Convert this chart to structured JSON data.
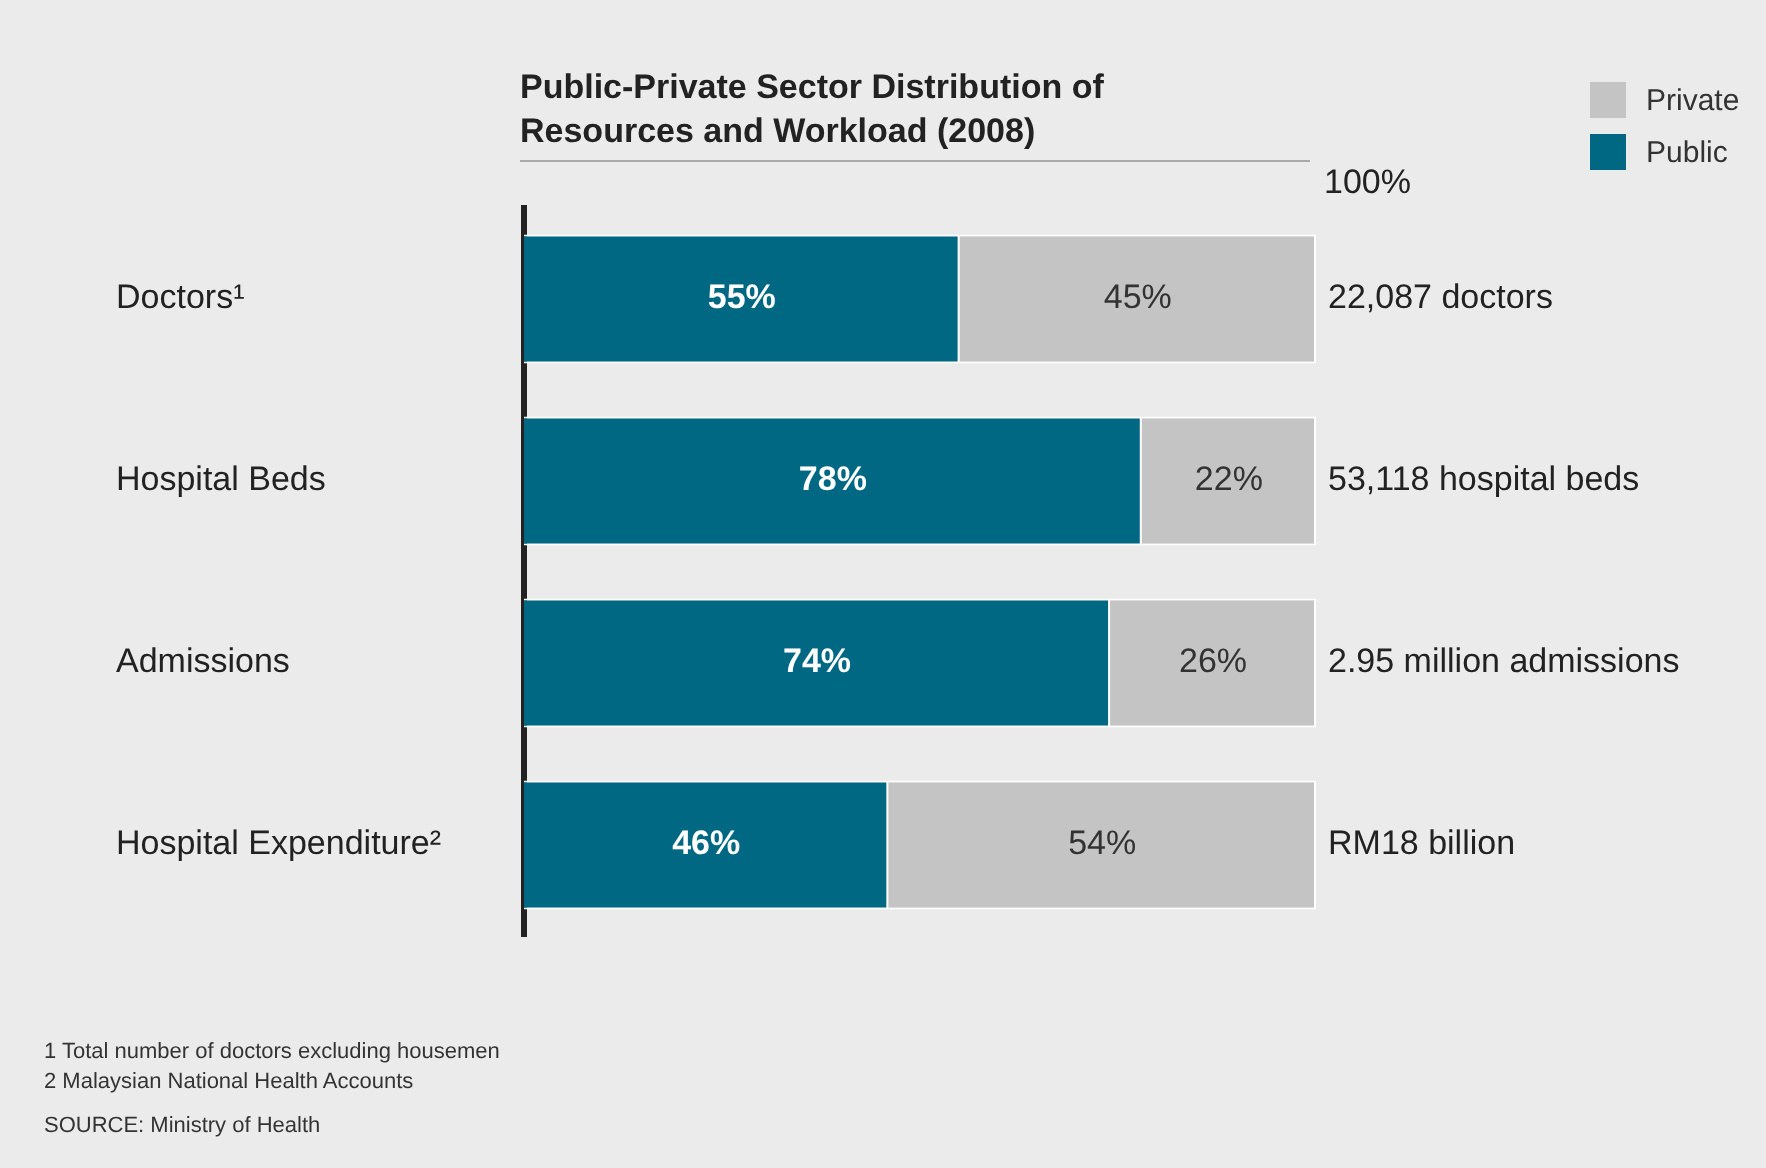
{
  "chart_data": {
    "type": "bar",
    "orientation": "horizontal",
    "stacked": true,
    "title": "Public-Private Sector Distribution of Resources and Workload (2008)",
    "categories": [
      "Doctors¹",
      "Hospital Beds",
      "Admissions",
      "Hospital Expenditure²"
    ],
    "series": [
      {
        "name": "Public",
        "color": "#006882",
        "values": [
          55,
          78,
          74,
          46
        ],
        "value_labels": [
          "55%",
          "78%",
          "74%",
          "46%"
        ]
      },
      {
        "name": "Private",
        "color": "#c4c4c4",
        "values": [
          45,
          22,
          26,
          54
        ],
        "value_labels": [
          "45%",
          "22%",
          "26%",
          "54%"
        ]
      }
    ],
    "xlim": [
      0,
      100
    ],
    "grid": false,
    "legend": "top right",
    "annotations": [
      "100%",
      "22,087 doctors",
      "53,118 hospital beds",
      "2.95 million admissions",
      "RM18 billion",
      "1 Total number of doctors excluding housemen",
      "2 Malaysian National Health Accounts",
      "SOURCE: Ministry of Health"
    ]
  }
}
